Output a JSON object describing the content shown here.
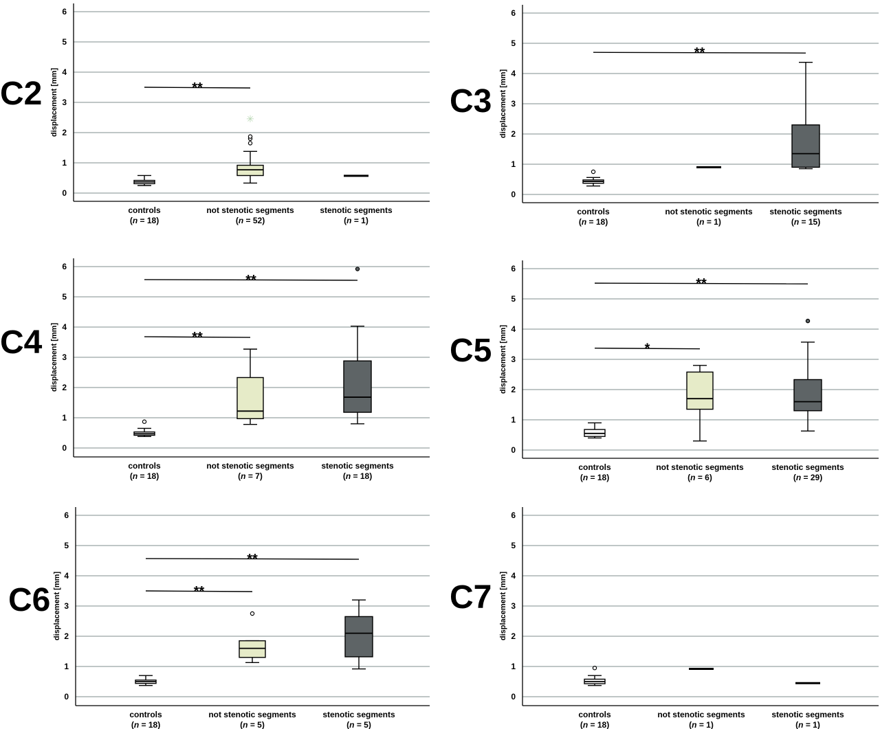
{
  "colors": {
    "controls": "#ffffff",
    "not_stenotic": "#e6ebc8",
    "stenotic": "#5e6466",
    "grid": "#aab4b4",
    "axis": "#000000",
    "extreme": "#b9d8b4"
  },
  "chart_data": [
    {
      "type": "box",
      "panel_label": "C2",
      "ylabel": "displacement [mm]",
      "ylim": [
        0,
        6
      ],
      "yticks": [
        "0",
        "1",
        "2",
        "3",
        "4",
        "5",
        "6"
      ],
      "grid": true,
      "categories": [
        {
          "name": "controls",
          "n_label": "= 18",
          "box": {
            "min": 0.25,
            "q1": 0.31,
            "median": 0.37,
            "q3": 0.42,
            "max": 0.58
          },
          "outliers": [],
          "extremes": []
        },
        {
          "name": "not stenotic segments",
          "n_label": "= 52",
          "box": {
            "min": 0.33,
            "q1": 0.58,
            "median": 0.77,
            "q3": 0.92,
            "max": 1.38
          },
          "outliers": [
            1.65,
            1.8,
            1.87
          ],
          "extremes": [
            2.45
          ]
        },
        {
          "name": "stenotic segments",
          "n_label": "= 1",
          "box": {
            "min": 0.57,
            "q1": 0.57,
            "median": 0.57,
            "q3": 0.57,
            "max": 0.57
          },
          "outliers": [],
          "extremes": []
        }
      ],
      "significance": [
        {
          "from": 0,
          "to": 1,
          "y": 3.5,
          "label": "**"
        }
      ]
    },
    {
      "type": "box",
      "panel_label": "C3",
      "ylabel": "displacement [mm]",
      "ylim": [
        0,
        6
      ],
      "yticks": [
        "0",
        "1",
        "2",
        "3",
        "4",
        "5",
        "6"
      ],
      "grid": true,
      "categories": [
        {
          "name": "controls",
          "n_label": "= 18",
          "box": {
            "min": 0.28,
            "q1": 0.37,
            "median": 0.43,
            "q3": 0.48,
            "max": 0.56
          },
          "outliers": [
            0.75
          ],
          "extremes": []
        },
        {
          "name": "not stenotic segments",
          "n_label": "= 1",
          "box": {
            "min": 0.9,
            "q1": 0.9,
            "median": 0.9,
            "q3": 0.9,
            "max": 0.9
          },
          "outliers": [],
          "extremes": []
        },
        {
          "name": "stenotic segments",
          "n_label": "= 15",
          "box": {
            "min": 0.85,
            "q1": 0.9,
            "median": 1.35,
            "q3": 2.3,
            "max": 4.37
          },
          "outliers": [],
          "extremes": []
        }
      ],
      "significance": [
        {
          "from": 0,
          "to": 2,
          "y": 4.7,
          "label": "**"
        }
      ]
    },
    {
      "type": "box",
      "panel_label": "C4",
      "ylabel": "displacement [mm]",
      "ylim": [
        0,
        6
      ],
      "yticks": [
        "0",
        "1",
        "2",
        "3",
        "4",
        "5",
        "6"
      ],
      "grid": true,
      "categories": [
        {
          "name": "controls",
          "n_label": "= 18",
          "box": {
            "min": 0.38,
            "q1": 0.42,
            "median": 0.47,
            "q3": 0.53,
            "max": 0.65
          },
          "outliers": [
            0.87
          ],
          "extremes": []
        },
        {
          "name": "not stenotic segments",
          "n_label": "= 7",
          "box": {
            "min": 0.78,
            "q1": 0.97,
            "median": 1.22,
            "q3": 2.33,
            "max": 3.27
          },
          "outliers": [],
          "extremes": []
        },
        {
          "name": "stenotic segments",
          "n_label": "= 18",
          "box": {
            "min": 0.8,
            "q1": 1.18,
            "median": 1.68,
            "q3": 2.88,
            "max": 4.03
          },
          "outliers": [
            5.92
          ],
          "extremes": []
        }
      ],
      "significance": [
        {
          "from": 0,
          "to": 1,
          "y": 3.68,
          "label": "**"
        },
        {
          "from": 0,
          "to": 2,
          "y": 5.57,
          "label": "**"
        }
      ]
    },
    {
      "type": "box",
      "panel_label": "C5",
      "ylabel": "displacement [mm]",
      "ylim": [
        0,
        6
      ],
      "yticks": [
        "0",
        "1",
        "2",
        "3",
        "4",
        "5",
        "6"
      ],
      "grid": true,
      "categories": [
        {
          "name": "controls",
          "n_label": "= 18",
          "box": {
            "min": 0.4,
            "q1": 0.45,
            "median": 0.55,
            "q3": 0.68,
            "max": 0.9
          },
          "outliers": [],
          "extremes": []
        },
        {
          "name": "not stenotic segments",
          "n_label": "= 6",
          "box": {
            "min": 0.3,
            "q1": 1.35,
            "median": 1.7,
            "q3": 2.58,
            "max": 2.8
          },
          "outliers": [],
          "extremes": []
        },
        {
          "name": "stenotic segments",
          "n_label": "= 29",
          "box": {
            "min": 0.63,
            "q1": 1.3,
            "median": 1.6,
            "q3": 2.33,
            "max": 3.57
          },
          "outliers": [
            4.27
          ],
          "extremes": []
        }
      ],
      "significance": [
        {
          "from": 0,
          "to": 1,
          "y": 3.37,
          "label": "*"
        },
        {
          "from": 0,
          "to": 2,
          "y": 5.52,
          "label": "**"
        }
      ]
    },
    {
      "type": "box",
      "panel_label": "C6",
      "ylabel": "displacement [mm]",
      "ylim": [
        0,
        6
      ],
      "yticks": [
        "0",
        "1",
        "2",
        "3",
        "4",
        "5",
        "6"
      ],
      "grid": true,
      "categories": [
        {
          "name": "controls",
          "n_label": "= 18",
          "box": {
            "min": 0.37,
            "q1": 0.44,
            "median": 0.5,
            "q3": 0.55,
            "max": 0.7
          },
          "outliers": [],
          "extremes": []
        },
        {
          "name": "not stenotic segments",
          "n_label": "= 5",
          "box": {
            "min": 1.13,
            "q1": 1.3,
            "median": 1.6,
            "q3": 1.85,
            "max": 1.85
          },
          "outliers": [
            2.75
          ],
          "extremes": []
        },
        {
          "name": "stenotic segments",
          "n_label": "= 5",
          "box": {
            "min": 0.92,
            "q1": 1.32,
            "median": 2.1,
            "q3": 2.65,
            "max": 3.2
          },
          "outliers": [],
          "extremes": []
        }
      ],
      "significance": [
        {
          "from": 0,
          "to": 1,
          "y": 3.5,
          "label": "**"
        },
        {
          "from": 0,
          "to": 2,
          "y": 4.57,
          "label": "**"
        }
      ]
    },
    {
      "type": "box",
      "panel_label": "C7",
      "ylabel": "displacement [mm]",
      "ylim": [
        0,
        6
      ],
      "yticks": [
        "0",
        "1",
        "2",
        "3",
        "4",
        "5",
        "6"
      ],
      "grid": true,
      "categories": [
        {
          "name": "controls",
          "n_label": "= 18",
          "box": {
            "min": 0.37,
            "q1": 0.43,
            "median": 0.5,
            "q3": 0.58,
            "max": 0.7
          },
          "outliers": [
            0.95
          ],
          "extremes": []
        },
        {
          "name": "not stenotic segments",
          "n_label": "= 1",
          "box": {
            "min": 0.92,
            "q1": 0.92,
            "median": 0.92,
            "q3": 0.92,
            "max": 0.92
          },
          "outliers": [],
          "extremes": []
        },
        {
          "name": "stenotic segments",
          "n_label": "= 1",
          "box": {
            "min": 0.45,
            "q1": 0.45,
            "median": 0.45,
            "q3": 0.45,
            "max": 0.45
          },
          "outliers": [],
          "extremes": []
        }
      ],
      "significance": []
    }
  ]
}
